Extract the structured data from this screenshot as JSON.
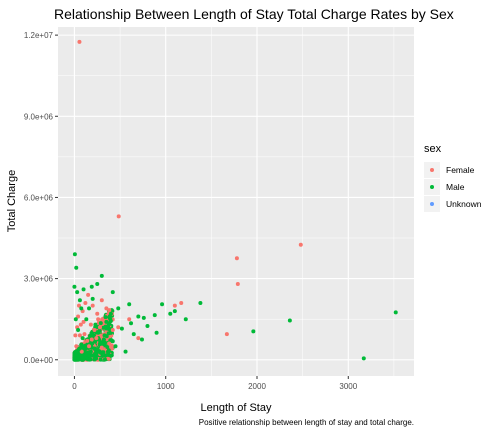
{
  "chart_data": {
    "type": "scatter",
    "title": "Relationship Between Length of Stay Total Charge Rates by Sex",
    "xlabel": "Length of Stay",
    "ylabel": "Total Charge",
    "caption": "Positive relationship between length of stay and total charge.",
    "xlim": [
      -180,
      3720
    ],
    "ylim": [
      -600000,
      12300000
    ],
    "x_ticks": [
      0,
      1000,
      2000,
      3000
    ],
    "x_tick_labels": [
      "0",
      "1000",
      "2000",
      "3000"
    ],
    "y_ticks": [
      0,
      3000000,
      6000000,
      9000000,
      12000000
    ],
    "y_tick_labels": [
      "0.0e+00",
      "3.0e+06",
      "6.0e+06",
      "9.0e+06",
      "1.2e+07"
    ],
    "grid": true,
    "legend": {
      "title": "sex",
      "placement": "right",
      "entries": [
        "Female",
        "Male",
        "Unknown"
      ]
    },
    "series": [
      {
        "name": "Female",
        "color": "#F8766D",
        "points": [
          [
            55,
            11750000
          ],
          [
            485,
            5300000
          ],
          [
            2480,
            4250000
          ],
          [
            1780,
            3750000
          ],
          [
            1790,
            2800000
          ],
          [
            1170,
            2100000
          ],
          [
            1100,
            2000000
          ],
          [
            1670,
            950000
          ],
          [
            480,
            1200000
          ],
          [
            600,
            1500000
          ],
          [
            700,
            800000
          ],
          [
            350,
            1900000
          ],
          [
            300,
            2200000
          ],
          [
            250,
            1700000
          ],
          [
            150,
            2400000
          ],
          [
            120,
            2100000
          ],
          [
            200,
            2000000
          ],
          [
            260,
            1500000
          ],
          [
            90,
            1800000
          ],
          [
            40,
            1600000
          ],
          [
            180,
            1300000
          ],
          [
            320,
            900000
          ],
          [
            420,
            1100000
          ],
          [
            380,
            600000
          ],
          [
            140,
            700000
          ],
          [
            60,
            900000
          ],
          [
            30,
            1200000
          ],
          [
            220,
            1100000
          ],
          [
            100,
            1400000
          ],
          [
            20,
            500000
          ],
          [
            80,
            300000
          ],
          [
            160,
            500000
          ],
          [
            240,
            800000
          ],
          [
            280,
            1200000
          ],
          [
            50,
            2000000
          ],
          [
            110,
            950000
          ],
          [
            190,
            750000
          ],
          [
            300,
            450000
          ],
          [
            10,
            900000
          ],
          [
            70,
            1300000
          ]
        ]
      },
      {
        "name": "Male",
        "color": "#00BA38",
        "points": [
          [
            3520,
            1750000
          ],
          [
            3170,
            50000
          ],
          [
            2360,
            1450000
          ],
          [
            1960,
            1050000
          ],
          [
            1380,
            2100000
          ],
          [
            1220,
            1500000
          ],
          [
            1050,
            1700000
          ],
          [
            960,
            2050000
          ],
          [
            880,
            1650000
          ],
          [
            800,
            1250000
          ],
          [
            760,
            1550000
          ],
          [
            700,
            1600000
          ],
          [
            600,
            2050000
          ],
          [
            480,
            1900000
          ],
          [
            420,
            2500000
          ],
          [
            300,
            3100000
          ],
          [
            250,
            2800000
          ],
          [
            5,
            3900000
          ],
          [
            20,
            3400000
          ],
          [
            0,
            2700000
          ],
          [
            30,
            2500000
          ],
          [
            350,
            1400000
          ],
          [
            520,
            1150000
          ],
          [
            650,
            950000
          ],
          [
            740,
            750000
          ],
          [
            450,
            500000
          ],
          [
            560,
            300000
          ],
          [
            400,
            1700000
          ],
          [
            200,
            2250000
          ],
          [
            100,
            2600000
          ],
          [
            160,
            1900000
          ],
          [
            60,
            2200000
          ],
          [
            130,
            1500000
          ],
          [
            230,
            1300000
          ],
          [
            330,
            900000
          ],
          [
            280,
            600000
          ],
          [
            180,
            300000
          ],
          [
            90,
            800000
          ],
          [
            40,
            1100000
          ],
          [
            15,
            1500000
          ],
          [
            50,
            400000
          ],
          [
            10,
            200000
          ],
          [
            120,
            200000
          ],
          [
            260,
            1000000
          ],
          [
            370,
            1250000
          ],
          [
            620,
            1350000
          ],
          [
            900,
            1000000
          ],
          [
            1100,
            1800000
          ],
          [
            190,
            2700000
          ],
          [
            75,
            1900000
          ]
        ]
      },
      {
        "name": "Unknown",
        "color": "#619CFF",
        "points": []
      }
    ]
  }
}
